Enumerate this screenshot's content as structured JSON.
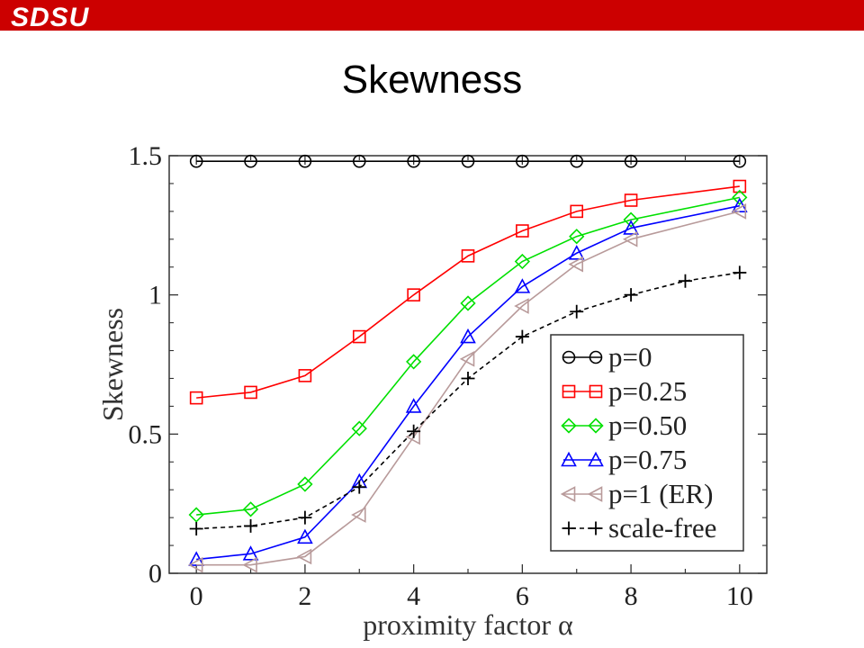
{
  "header": {
    "logo_text": "SDSU",
    "accent_color": "#cc0000"
  },
  "slide": {
    "title": "Skewness"
  },
  "chart_data": {
    "type": "line",
    "title": "",
    "xlabel": "proximity factor α",
    "ylabel": "Skewness",
    "xlim": [
      -0.5,
      10.5
    ],
    "ylim": [
      0,
      1.5
    ],
    "xticks": [
      "0",
      "2",
      "4",
      "6",
      "8",
      "10"
    ],
    "yticks": [
      "0",
      "0.5",
      "1",
      "1.5"
    ],
    "legend_position": "bottom-right",
    "grid": false,
    "series": [
      {
        "name": "p=0",
        "color": "#000000",
        "marker": "circle",
        "dashed": false,
        "x": [
          0,
          1,
          2,
          3,
          4,
          5,
          6,
          7,
          8,
          10
        ],
        "values": [
          1.48,
          1.48,
          1.48,
          1.48,
          1.48,
          1.48,
          1.48,
          1.48,
          1.48,
          1.48
        ]
      },
      {
        "name": "p=0.25",
        "color": "#ff0000",
        "marker": "square",
        "dashed": false,
        "x": [
          0,
          1,
          2,
          3,
          4,
          5,
          6,
          7,
          8,
          10
        ],
        "values": [
          0.63,
          0.65,
          0.71,
          0.85,
          1.0,
          1.14,
          1.23,
          1.3,
          1.34,
          1.39
        ]
      },
      {
        "name": "p=0.50",
        "color": "#00e000",
        "marker": "diamond",
        "dashed": false,
        "x": [
          0,
          1,
          2,
          3,
          4,
          5,
          6,
          7,
          8,
          10
        ],
        "values": [
          0.21,
          0.23,
          0.32,
          0.52,
          0.76,
          0.97,
          1.12,
          1.21,
          1.27,
          1.35
        ]
      },
      {
        "name": "p=0.75",
        "color": "#0000ff",
        "marker": "triangle-up",
        "dashed": false,
        "x": [
          0,
          1,
          2,
          3,
          4,
          5,
          6,
          7,
          8,
          10
        ],
        "values": [
          0.05,
          0.07,
          0.13,
          0.33,
          0.6,
          0.85,
          1.03,
          1.15,
          1.24,
          1.32
        ]
      },
      {
        "name": "p=1 (ER)",
        "color": "#b89a9a",
        "marker": "triangle-left",
        "dashed": false,
        "x": [
          0,
          1,
          2,
          3,
          4,
          5,
          6,
          7,
          8,
          10
        ],
        "values": [
          0.03,
          0.03,
          0.06,
          0.21,
          0.49,
          0.77,
          0.96,
          1.11,
          1.2,
          1.3
        ]
      },
      {
        "name": "scale-free",
        "color": "#000000",
        "marker": "plus",
        "dashed": true,
        "x": [
          0,
          1,
          2,
          3,
          4,
          5,
          6,
          7,
          8,
          9,
          10
        ],
        "values": [
          0.16,
          0.17,
          0.2,
          0.31,
          0.51,
          0.7,
          0.85,
          0.94,
          1.0,
          1.05,
          1.08
        ]
      }
    ]
  }
}
